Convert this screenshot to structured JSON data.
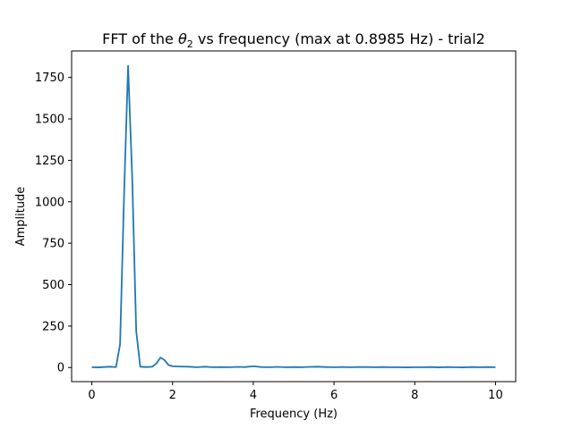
{
  "chart_data": {
    "type": "line",
    "title": {
      "prefix": "FFT of the ",
      "symbol": "θ",
      "subscript": "2",
      "suffix": " vs frequency (max at 0.8985 Hz) - trial2"
    },
    "xlabel": "Frequency (Hz)",
    "ylabel": "Amplitude",
    "xlim": [
      -0.5,
      10.5
    ],
    "ylim": [
      -85,
      1910
    ],
    "xticks": [
      0,
      2,
      4,
      6,
      8,
      10
    ],
    "xtick_labels": [
      "0",
      "2",
      "4",
      "6",
      "8",
      "10"
    ],
    "yticks": [
      0,
      250,
      500,
      750,
      1000,
      1250,
      1500,
      1750
    ],
    "ytick_labels": [
      "0",
      "250",
      "500",
      "750",
      "1000",
      "1250",
      "1500",
      "1750"
    ],
    "grid": false,
    "series": [
      {
        "color": "#1f77b4",
        "x": [
          0,
          0.15,
          0.3,
          0.45,
          0.6,
          0.7,
          0.8,
          0.8985,
          1.0,
          1.1,
          1.2,
          1.35,
          1.5,
          1.6,
          1.7,
          1.8,
          1.9,
          2.0,
          2.2,
          2.4,
          2.6,
          2.8,
          3.0,
          3.2,
          3.4,
          3.6,
          3.8,
          4.0,
          4.2,
          4.4,
          4.6,
          4.8,
          5.0,
          5.2,
          5.4,
          5.6,
          5.8,
          6.0,
          6.2,
          6.4,
          6.6,
          6.8,
          7.0,
          7.2,
          7.4,
          7.6,
          7.8,
          8.0,
          8.2,
          8.4,
          8.6,
          8.8,
          9.0,
          9.2,
          9.4,
          9.6,
          9.8,
          10.0
        ],
        "y": [
          2,
          1,
          3,
          5,
          3,
          140,
          1050,
          1820,
          1150,
          220,
          5,
          3,
          5,
          25,
          60,
          45,
          15,
          8,
          6,
          5,
          2,
          5,
          2,
          3,
          2,
          4,
          3,
          8,
          3,
          2,
          4,
          2,
          3,
          2,
          4,
          5,
          3,
          2,
          3,
          2,
          3,
          3,
          2,
          3,
          2,
          2,
          1,
          2,
          2,
          3,
          1,
          3,
          2,
          1,
          3,
          2,
          3,
          2
        ]
      }
    ]
  }
}
